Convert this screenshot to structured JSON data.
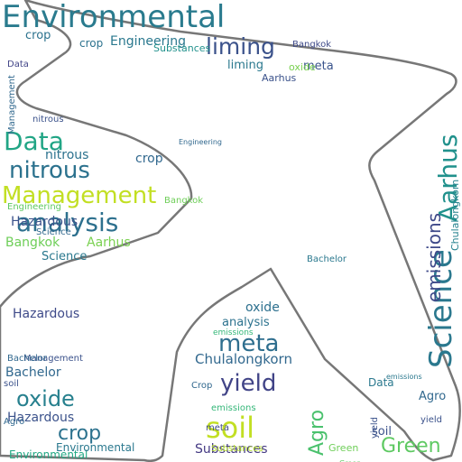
{
  "cloud": {
    "outline_color": "#777777",
    "words": [
      {
        "text": "Environmental",
        "color": "#2a7b8e",
        "rotate": false
      },
      {
        "text": "liming",
        "color": "#3b528b",
        "rotate": false
      },
      {
        "text": "Data",
        "color": "#21a585",
        "rotate": false
      },
      {
        "text": "nitrous",
        "color": "#2c728e",
        "rotate": false
      },
      {
        "text": "Management",
        "color": "#c2df23",
        "rotate": false
      },
      {
        "text": "analysis",
        "color": "#2d708e",
        "rotate": false
      },
      {
        "text": "Bangkok",
        "color": "#6ece58",
        "rotate": false
      },
      {
        "text": "Aarhus",
        "color": "#7ad151",
        "rotate": false
      },
      {
        "text": "Science",
        "color": "#2a788e",
        "rotate": false
      },
      {
        "text": "crop",
        "color": "#31688e",
        "rotate": false
      },
      {
        "text": "Hazardous",
        "color": "#3e4a89",
        "rotate": false
      },
      {
        "text": "Engineering",
        "color": "#2a788e",
        "rotate": false
      },
      {
        "text": "Substances",
        "color": "#21918c",
        "rotate": false
      },
      {
        "text": "meta",
        "color": "#2e6e8e",
        "rotate": false
      },
      {
        "text": "oxide",
        "color": "#27808e",
        "rotate": false
      },
      {
        "text": "meta",
        "color": "#3a548c",
        "rotate": false
      },
      {
        "text": "yield",
        "color": "#414487",
        "rotate": false
      },
      {
        "text": "Chulalongkorn",
        "color": "#31688e",
        "rotate": false
      },
      {
        "text": "analysis",
        "color": "#2c728e",
        "rotate": false
      },
      {
        "text": "emissions",
        "color": "#35b779",
        "rotate": false
      },
      {
        "text": "Bachelor",
        "color": "#31688e",
        "rotate": false
      },
      {
        "text": "oxide",
        "color": "#2d708e",
        "rotate": false
      },
      {
        "text": "Hazardous",
        "color": "#3b528b",
        "rotate": false
      },
      {
        "text": "crop",
        "color": "#2c728e",
        "rotate": false
      },
      {
        "text": "Environmental",
        "color": "#22a884",
        "rotate": false
      },
      {
        "text": "soil",
        "color": "#c2df23",
        "rotate": false
      },
      {
        "text": "Substances",
        "color": "#443983",
        "rotate": false
      },
      {
        "text": "Green",
        "color": "#5ec962",
        "rotate": false
      },
      {
        "text": "soil",
        "color": "#3b528b",
        "rotate": false
      },
      {
        "text": "Agro",
        "color": "#31688e",
        "rotate": false
      },
      {
        "text": "Data",
        "color": "#2a788e",
        "rotate": false
      },
      {
        "text": "Agro",
        "color": "#4ac16d",
        "rotate": true
      },
      {
        "text": "Green",
        "color": "#6ece58",
        "rotate": false
      },
      {
        "text": "yield",
        "color": "#3b528b",
        "rotate": true
      },
      {
        "text": "Science",
        "color": "#2a788e",
        "rotate": true
      },
      {
        "text": "Aarhus",
        "color": "#21918c",
        "rotate": true
      },
      {
        "text": "emissions",
        "color": "#3e4989",
        "rotate": true
      },
      {
        "text": "Chulalongkorn",
        "color": "#26828e",
        "rotate": true
      },
      {
        "text": "Management",
        "color": "#31688e",
        "rotate": true
      },
      {
        "text": "nitrous",
        "color": "#3b528b",
        "rotate": false
      },
      {
        "text": "nitrous",
        "color": "#2c728e",
        "rotate": false
      },
      {
        "text": "Engineering",
        "color": "#5ec962",
        "rotate": false
      },
      {
        "text": "Bangkok",
        "color": "#3e4a89",
        "rotate": false
      },
      {
        "text": "liming",
        "color": "#2a788e",
        "rotate": false
      },
      {
        "text": "oxide",
        "color": "#7ad151",
        "rotate": false
      },
      {
        "text": "Aarhus",
        "color": "#3b528b",
        "rotate": false
      },
      {
        "text": "Engineering",
        "color": "#31688e",
        "rotate": false
      },
      {
        "text": "crop",
        "color": "#2c728e",
        "rotate": false
      },
      {
        "text": "Data",
        "color": "#414487",
        "rotate": false
      },
      {
        "text": "Hazardous",
        "color": "#3b528b",
        "rotate": false
      },
      {
        "text": "Science",
        "color": "#31688e",
        "rotate": false
      },
      {
        "text": "Bachelor",
        "color": "#2a788e",
        "rotate": false
      },
      {
        "text": "meta",
        "color": "#3e4a89",
        "rotate": false
      },
      {
        "text": "Substances",
        "color": "#b5de2b",
        "rotate": false
      },
      {
        "text": "crop",
        "color": "#2c728e",
        "rotate": false
      },
      {
        "text": "Crop",
        "color": "#31688e",
        "rotate": false
      },
      {
        "text": "Management",
        "color": "#3b528b",
        "rotate": false
      },
      {
        "text": "emissions",
        "color": "#35b779",
        "rotate": false
      },
      {
        "text": "Green",
        "color": "#5ec962",
        "rotate": false
      },
      {
        "text": "Environmental",
        "color": "#2a788e",
        "rotate": false
      },
      {
        "text": "Bachelor",
        "color": "#31688e",
        "rotate": false
      },
      {
        "text": "soil",
        "color": "#3b528b",
        "rotate": false
      },
      {
        "text": "yield",
        "color": "#3b528b",
        "rotate": false
      },
      {
        "text": "Agro",
        "color": "#31688e",
        "rotate": false
      },
      {
        "text": "Bangkok",
        "color": "#6ece58",
        "rotate": false
      },
      {
        "text": "emissions",
        "color": "#2a788e",
        "rotate": false
      }
    ]
  }
}
